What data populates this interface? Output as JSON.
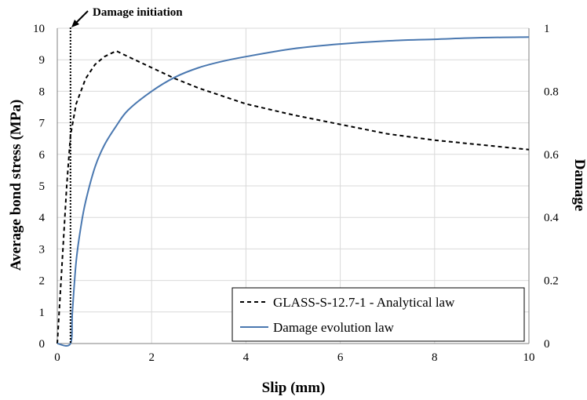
{
  "chart_data": {
    "type": "line",
    "xlabel": "Slip (mm)",
    "ylabel": "Average bond stress (MPa)",
    "y2label": "Damage",
    "xlim": [
      0,
      10
    ],
    "ylim": [
      0,
      10
    ],
    "y2lim": [
      0,
      1
    ],
    "x_ticks": [
      "0",
      "2",
      "4",
      "6",
      "8",
      "10"
    ],
    "y_ticks": [
      "0",
      "1",
      "2",
      "3",
      "4",
      "5",
      "6",
      "7",
      "8",
      "9",
      "10"
    ],
    "y2_ticks": [
      "0",
      "0.2",
      "0.4",
      "0.6",
      "0.8",
      "1"
    ],
    "grid": true,
    "legend_position": "bottom-right",
    "annotation": {
      "text": "Damage initiation",
      "x": 0.28
    },
    "series": [
      {
        "name": "GLASS-S-12.7-1 - Analytical law",
        "axis": "left",
        "style": "dashed",
        "color": "#000000",
        "x": [
          0,
          0.1,
          0.2,
          0.28,
          0.4,
          0.6,
          0.8,
          1.0,
          1.25,
          1.5,
          2,
          2.5,
          3,
          3.5,
          4,
          5,
          6,
          7,
          8,
          9,
          10
        ],
        "y": [
          0,
          2.5,
          5.0,
          6.6,
          7.6,
          8.4,
          8.85,
          9.1,
          9.28,
          9.1,
          8.75,
          8.4,
          8.1,
          7.85,
          7.6,
          7.25,
          6.95,
          6.65,
          6.45,
          6.3,
          6.15
        ]
      },
      {
        "name": "Damage evolution law",
        "axis": "right",
        "style": "solid",
        "color": "#4a78b0",
        "x": [
          0,
          0.28,
          0.32,
          0.4,
          0.5,
          0.6,
          0.8,
          1.0,
          1.25,
          1.5,
          2,
          2.5,
          3,
          3.5,
          4,
          5,
          6,
          7,
          8,
          9,
          10
        ],
        "y": [
          0,
          0,
          0.1,
          0.26,
          0.37,
          0.45,
          0.56,
          0.63,
          0.69,
          0.74,
          0.8,
          0.845,
          0.875,
          0.895,
          0.91,
          0.935,
          0.95,
          0.96,
          0.965,
          0.97,
          0.972
        ]
      }
    ]
  }
}
